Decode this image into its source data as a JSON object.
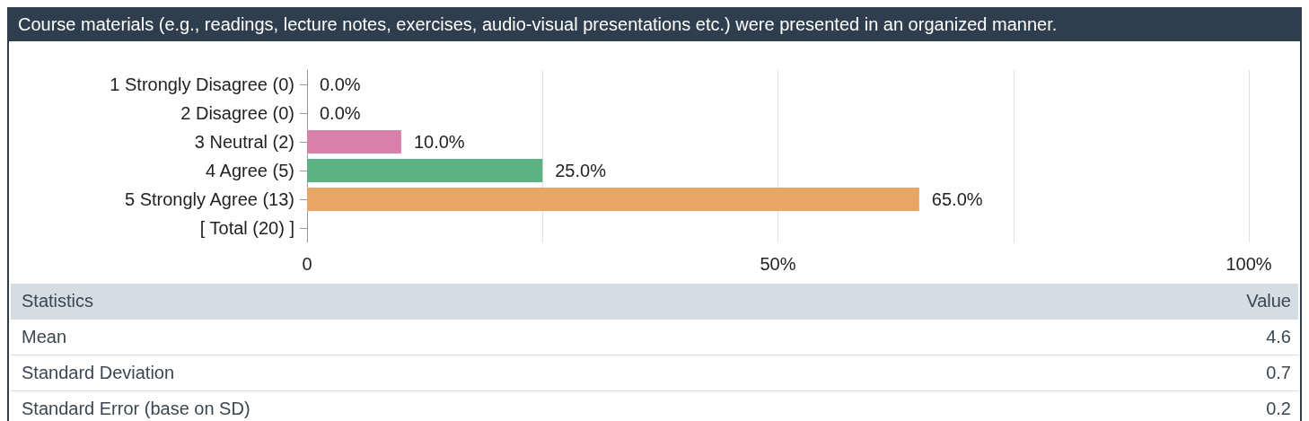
{
  "chart_data": [
    {
      "type": "bar",
      "orientation": "horizontal",
      "title": "Course materials (e.g., readings, lecture notes, exercises, audio-visual presentations etc.) were presented in an organized manner.",
      "categories": [
        "1 Strongly Disagree (0)",
        "2 Disagree (0)",
        "3 Neutral (2)",
        "4 Agree (5)",
        "5 Strongly Agree (13)",
        "[ Total (20) ]"
      ],
      "values": [
        0,
        0,
        10,
        25,
        65,
        null
      ],
      "colors": [
        "#d980aa",
        "#d980aa",
        "#d980aa",
        "#5bb384",
        "#e8a563",
        "#e8a563"
      ],
      "value_labels": [
        "0.0%",
        "0.0%",
        "10.0%",
        "25.0%",
        "65.0%",
        null
      ],
      "xlim": [
        0,
        100
      ],
      "xticks": [
        {
          "value": 0,
          "label": "0"
        },
        {
          "value": 25,
          "label": null
        },
        {
          "value": 50,
          "label": "50%"
        },
        {
          "value": 75,
          "label": null
        },
        {
          "value": 100,
          "label": "100%"
        }
      ],
      "grid": "x"
    },
    {
      "type": "other",
      "xlabel": "Statistics",
      "ylabel": "Value",
      "categories": [
        "Mean",
        "Standard Deviation",
        "Standard Error (base on SD)"
      ],
      "values": [
        4.6,
        0.7,
        0.2
      ],
      "data_labels": true
    }
  ]
}
